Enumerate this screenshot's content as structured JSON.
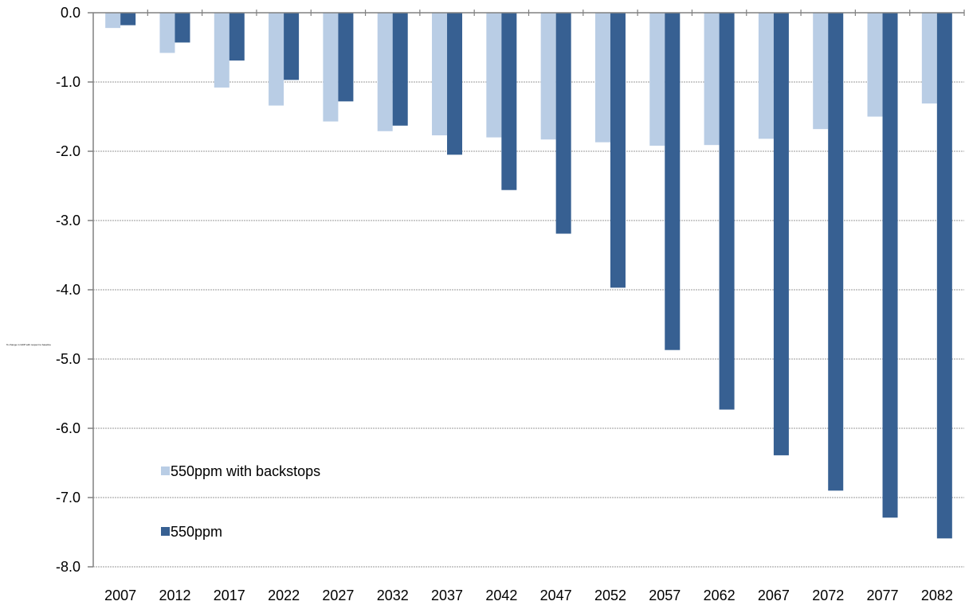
{
  "chart_data": {
    "type": "bar",
    "title": "",
    "xlabel": "",
    "ylabel": "% change in GDP with respect to baseline",
    "ylim": [
      -8.0,
      0.0
    ],
    "y_ticks": [
      "0.0",
      "-1.0",
      "-2.0",
      "-3.0",
      "-4.0",
      "-5.0",
      "-6.0",
      "-7.0",
      "-8.0"
    ],
    "grid": true,
    "legend_position": "bottom-left",
    "categories": [
      "2007",
      "2012",
      "2017",
      "2022",
      "2027",
      "2032",
      "2037",
      "2042",
      "2047",
      "2052",
      "2057",
      "2062",
      "2067",
      "2072",
      "2077",
      "2082"
    ],
    "series": [
      {
        "name": "550ppm with backstops",
        "color": "#b9cde5",
        "values": [
          -0.22,
          -0.58,
          -1.08,
          -1.34,
          -1.57,
          -1.71,
          -1.77,
          -1.8,
          -1.83,
          -1.87,
          -1.92,
          -1.91,
          -1.82,
          -1.68,
          -1.5,
          -1.31
        ]
      },
      {
        "name": "550ppm",
        "color": "#376092",
        "values": [
          -0.18,
          -0.43,
          -0.69,
          -0.97,
          -1.28,
          -1.63,
          -2.05,
          -2.56,
          -3.19,
          -3.97,
          -4.87,
          -5.73,
          -6.39,
          -6.9,
          -7.29,
          -7.59
        ]
      }
    ]
  }
}
